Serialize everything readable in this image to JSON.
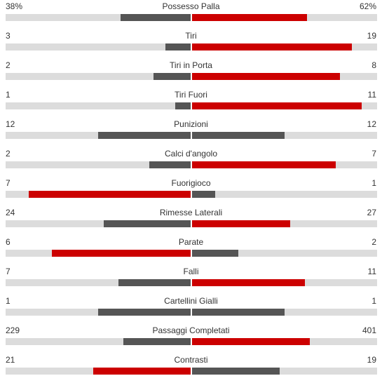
{
  "colors": {
    "leader": "#cc0000",
    "trailer": "#555555",
    "track": "#dcdcdc",
    "text": "#333333"
  },
  "stats": [
    {
      "name": "Possesso Palla",
      "home": "38%",
      "away": "62%",
      "home_fraction": 0.38,
      "away_fraction": 0.62
    },
    {
      "name": "Tiri",
      "home": "3",
      "away": "19",
      "home_fraction": 0.136,
      "away_fraction": 0.864
    },
    {
      "name": "Tiri in Porta",
      "home": "2",
      "away": "8",
      "home_fraction": 0.2,
      "away_fraction": 0.8
    },
    {
      "name": "Tiri Fuori",
      "home": "1",
      "away": "11",
      "home_fraction": 0.083,
      "away_fraction": 0.917
    },
    {
      "name": "Punizioni",
      "home": "12",
      "away": "12",
      "home_fraction": 0.5,
      "away_fraction": 0.5
    },
    {
      "name": "Calci d'angolo",
      "home": "2",
      "away": "7",
      "home_fraction": 0.222,
      "away_fraction": 0.778
    },
    {
      "name": "Fuorigioco",
      "home": "7",
      "away": "1",
      "home_fraction": 0.875,
      "away_fraction": 0.125
    },
    {
      "name": "Rimesse Laterali",
      "home": "24",
      "away": "27",
      "home_fraction": 0.471,
      "away_fraction": 0.529
    },
    {
      "name": "Parate",
      "home": "6",
      "away": "2",
      "home_fraction": 0.75,
      "away_fraction": 0.25
    },
    {
      "name": "Falli",
      "home": "7",
      "away": "11",
      "home_fraction": 0.389,
      "away_fraction": 0.611
    },
    {
      "name": "Cartellini Gialli",
      "home": "1",
      "away": "1",
      "home_fraction": 0.5,
      "away_fraction": 0.5
    },
    {
      "name": "Passaggi Completati",
      "home": "229",
      "away": "401",
      "home_fraction": 0.363,
      "away_fraction": 0.637
    },
    {
      "name": "Contrasti",
      "home": "21",
      "away": "19",
      "home_fraction": 0.525,
      "away_fraction": 0.475
    }
  ]
}
